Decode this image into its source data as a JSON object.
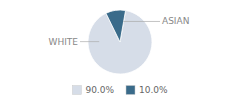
{
  "chart_data": {
    "type": "pie",
    "categories": [
      "WHITE",
      "ASIAN"
    ],
    "values": [
      90.0,
      10.0
    ],
    "value_labels": [
      "90.0%",
      "10.0%"
    ],
    "colors": [
      "#d6dde8",
      "#3a6b8a"
    ],
    "legend": "bottom"
  }
}
